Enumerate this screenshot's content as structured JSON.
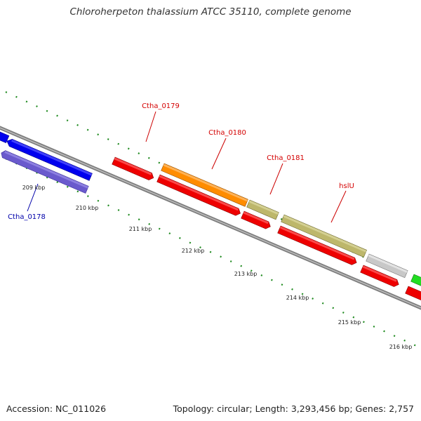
{
  "title": "Chloroherpeton thalassium ATCC 35110, complete genome",
  "footer": {
    "accession": "Accession: NC_011026",
    "topology": "Topology: circular; Length: 3,293,456 bp; Genes: 2,757"
  },
  "colors": {
    "backbone": "#888888",
    "tick_marks": "#1f8a1f",
    "label_forward": "#d40000",
    "label_reverse": "#0000aa"
  },
  "scale_labels": [
    "209 kbp",
    "210 kbp",
    "211 kbp",
    "212 kbp",
    "213 kbp",
    "214 kbp",
    "215 kbp",
    "216 kbp"
  ],
  "gene_labels": [
    {
      "text": "Ctha_0179",
      "color": "#d40000"
    },
    {
      "text": "Ctha_0180",
      "color": "#d40000"
    },
    {
      "text": "Ctha_0181",
      "color": "#d40000"
    },
    {
      "text": "hslU",
      "color": "#d40000"
    },
    {
      "text": "Ctha_0178",
      "color": "#0000aa"
    }
  ]
}
